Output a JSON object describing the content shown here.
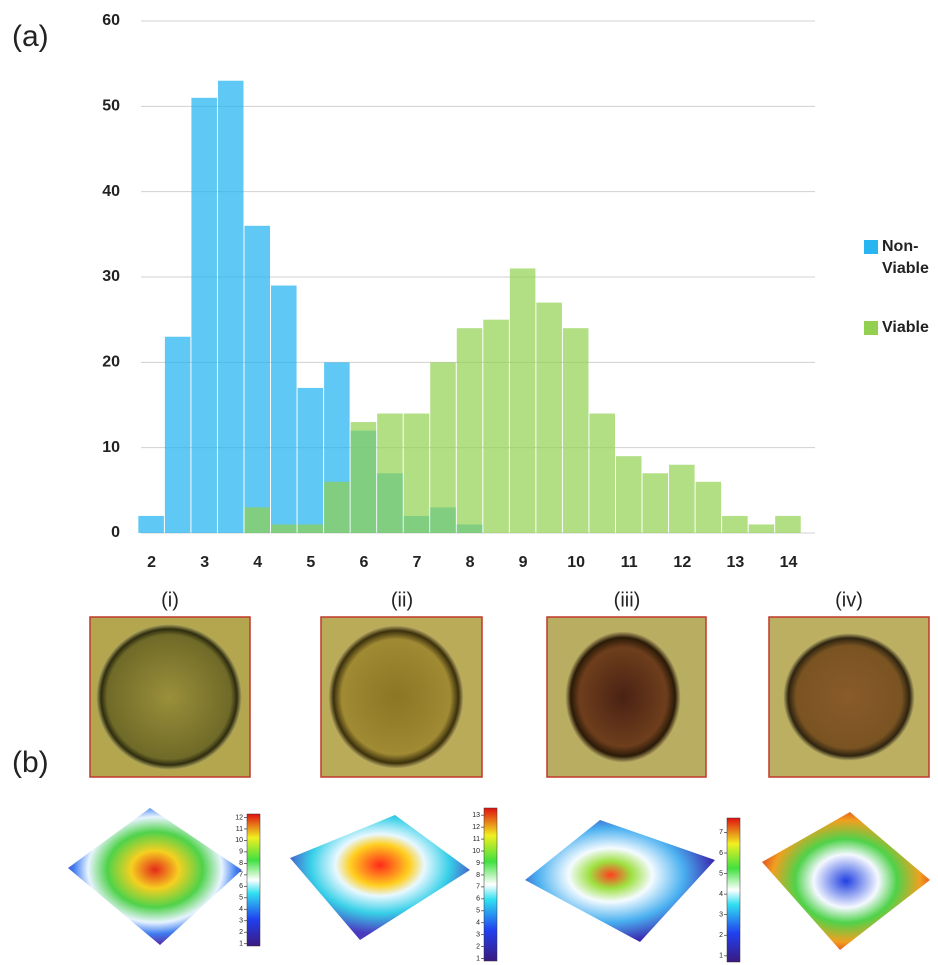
{
  "chart_data": {
    "type": "bar",
    "x": [
      2,
      2.5,
      3,
      3.5,
      4,
      4.5,
      5,
      5.5,
      6,
      6.5,
      7,
      7.5,
      8,
      8.5,
      9,
      9.5,
      10,
      10.5,
      11,
      11.5,
      12,
      12.5,
      13,
      13.5,
      14
    ],
    "bar_width": 0.5,
    "series": [
      {
        "name": "Non-Viable",
        "color": "#29b6f0",
        "values": [
          2,
          23,
          51,
          53,
          36,
          29,
          17,
          20,
          12,
          7,
          2,
          3,
          1,
          null,
          null,
          null,
          null,
          null,
          null,
          null,
          null,
          null,
          null,
          null,
          null
        ]
      },
      {
        "name": "Viable",
        "color": "#92d050",
        "values": [
          null,
          null,
          null,
          null,
          3,
          1,
          1,
          6,
          13,
          14,
          14,
          20,
          24,
          25,
          31,
          27,
          24,
          14,
          9,
          7,
          8,
          6,
          2,
          1,
          2
        ]
      }
    ],
    "xlim": [
      1.8,
      14.5
    ],
    "xticks": [
      2,
      3,
      4,
      5,
      6,
      7,
      8,
      9,
      10,
      11,
      12,
      13,
      14
    ],
    "ylim": [
      0,
      60
    ],
    "yticks": [
      0,
      10,
      20,
      30,
      40,
      50,
      60
    ],
    "grid": true,
    "legend": "right"
  },
  "panel_labels": [
    "(a)",
    "(b)"
  ],
  "image_labels": [
    "(i)",
    "(ii)",
    "(iii)",
    "(iv)"
  ],
  "colorbars": [
    {
      "lim": [
        0.8,
        12.3
      ],
      "ticks": [
        1,
        2,
        3,
        4,
        5,
        6,
        7,
        8,
        9,
        10,
        11,
        12
      ]
    },
    {
      "lim": [
        0.8,
        13.6
      ],
      "ticks": [
        1,
        2,
        3,
        4,
        5,
        6,
        7,
        8,
        9,
        10,
        11,
        12,
        13
      ]
    },
    {
      "lim": [
        0.7,
        7.7
      ],
      "ticks": [
        1,
        2,
        3,
        4,
        5,
        6,
        7
      ]
    }
  ]
}
